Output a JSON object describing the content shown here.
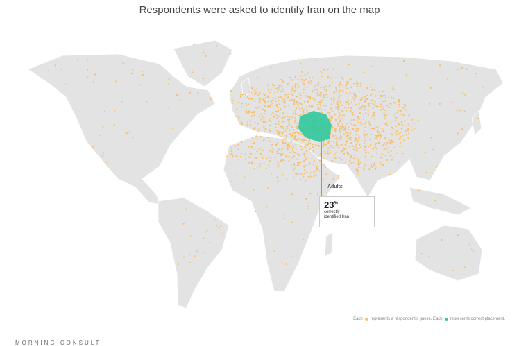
{
  "title": "Respondents were asked to identify Iran on the map",
  "callout": {
    "label": "Adults",
    "percent": "23",
    "percent_sign": "%",
    "text_line1": "correctly",
    "text_line2": "identified Iran"
  },
  "legend": {
    "text1": "Each",
    "text2": "represents a respondent's guess. Each",
    "text3": "represents correct placement."
  },
  "logo": "MORNING CONSULT",
  "colors": {
    "guess": "#f6bf6a",
    "correct": "#2fc9a0",
    "land": "#e3e3e3"
  }
}
